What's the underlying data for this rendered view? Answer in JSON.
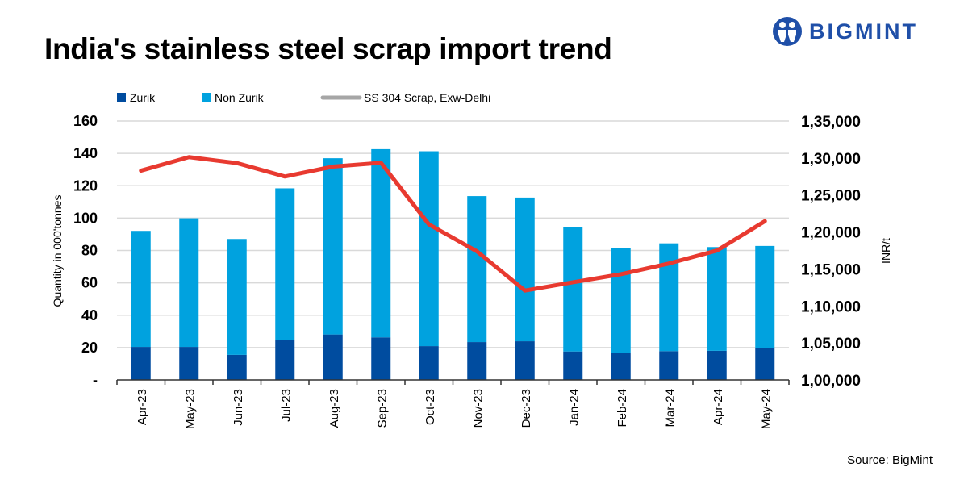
{
  "title": "India's stainless steel scrap import trend",
  "logo": {
    "text": "BIGMINT",
    "icon": "people-circle-icon"
  },
  "source": "Source:  BigMint",
  "chart_data": {
    "type": "bar",
    "stacked": true,
    "title": "India's stainless steel scrap import trend",
    "categories": [
      "Apr-23",
      "May-23",
      "Jun-23",
      "Jul-23",
      "Aug-23",
      "Sep-23",
      "Oct-23",
      "Nov-23",
      "Dec-23",
      "Jan-24",
      "Feb-24",
      "Mar-24",
      "Apr-24",
      "May-24"
    ],
    "series": [
      {
        "name": "Zurik",
        "kind": "bar",
        "axis": "left",
        "color": "#004c9f",
        "values": [
          20.4,
          20.4,
          15.5,
          24.9,
          28.1,
          26.3,
          20.9,
          23.4,
          23.9,
          17.6,
          16.6,
          17.8,
          18.0,
          19.5
        ]
      },
      {
        "name": "Non Zurik",
        "kind": "bar",
        "axis": "left",
        "color": "#00a2df",
        "values": [
          71.7,
          79.5,
          71.6,
          93.5,
          108.9,
          116.3,
          120.4,
          90.2,
          88.8,
          76.8,
          64.8,
          66.6,
          64.1,
          63.3
        ]
      },
      {
        "name": "SS 304 Scrap, Exw-Delhi",
        "kind": "line",
        "axis": "right",
        "color": "#e83a30",
        "legend_color": "#a6a6a6",
        "values": [
          128290,
          130120,
          129310,
          127500,
          128840,
          129350,
          121020,
          117380,
          112080,
          113200,
          114290,
          115740,
          117490,
          121460
        ]
      }
    ],
    "ylabel": "Quantity in 000'tonnes",
    "ylim": [
      0,
      160
    ],
    "yticks": [
      "-",
      "20",
      "40",
      "60",
      "80",
      "100",
      "120",
      "140",
      "160"
    ],
    "y2label": "INR/t",
    "y2lim": [
      100000,
      135000
    ],
    "y2ticks": [
      "1,00,000",
      "1,05,000",
      "1,10,000",
      "1,15,000",
      "1,20,000",
      "1,25,000",
      "1,30,000",
      "1,35,000"
    ],
    "grid": true,
    "legend_position": "top"
  }
}
